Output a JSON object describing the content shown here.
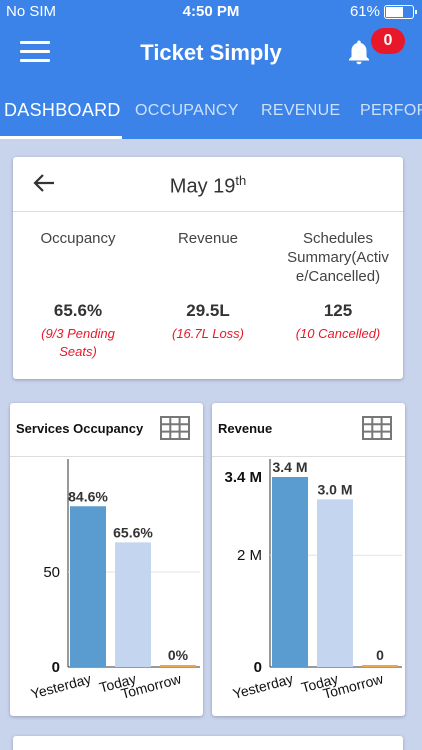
{
  "status": {
    "carrier": "No SIM",
    "time": "4:50 PM",
    "battery": "61%"
  },
  "header": {
    "title": "Ticket Simply",
    "notification_count": "0"
  },
  "tabs": [
    "DASHBOARD",
    "OCCUPANCY",
    "REVENUE",
    "PERFOR"
  ],
  "summary": {
    "date_main": "May 19",
    "date_suffix": "th",
    "columns": [
      {
        "label_line1": "Occupancy",
        "label_line2": "",
        "label_line3": "",
        "value": "65.6%",
        "sub_line1": "(9/3 Pending",
        "sub_line2": "Seats)"
      },
      {
        "label_line1": "Revenue",
        "label_line2": "",
        "label_line3": "",
        "value": "29.5L",
        "sub_line1": "(16.7L Loss)",
        "sub_line2": ""
      },
      {
        "label_line1": "Schedules",
        "label_line2": "Summary(Activ",
        "label_line3": "e/Cancelled)",
        "value": "125",
        "sub_line1": "(10 Cancelled)",
        "sub_line2": ""
      }
    ]
  },
  "colors": {
    "accent": "#3b83e8",
    "alert": "#e8182a",
    "bar_yesterday": "#5a9bd0",
    "bar_today": "#c4d5ef",
    "bar_tomorrow": "#f0a54a"
  },
  "chart_data": [
    {
      "type": "bar",
      "title": "Services Occupancy",
      "categories": [
        "Yesterday",
        "Today",
        "Tomorrow"
      ],
      "values": [
        84.6,
        65.6,
        0
      ],
      "value_labels": [
        "84.6%",
        "65.6%",
        "0%"
      ],
      "yticks": [
        "0",
        "50"
      ],
      "ylim": [
        0,
        100
      ]
    },
    {
      "type": "bar",
      "title": "Revenue",
      "categories": [
        "Yesterday",
        "Today",
        "Tomorrow"
      ],
      "values": [
        3.4,
        3.0,
        0
      ],
      "value_labels": [
        "3.4 M",
        "3.0 M",
        "0"
      ],
      "yticks": [
        "0",
        "2 M",
        "3.4 M"
      ],
      "ylim": [
        0,
        3.4
      ]
    }
  ]
}
